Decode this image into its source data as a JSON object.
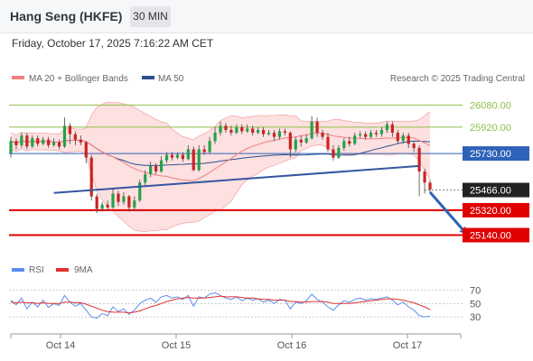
{
  "header": {
    "title": "Hang Seng (HKFE)",
    "timeframe": "30 MIN"
  },
  "datetime": "Friday, October 17, 2025 7:16:22 AM CET",
  "legend": {
    "ma20": "MA 20 + Bollinger Bands",
    "ma50": "MA 50",
    "credit": "Research © 2025 Trading Central",
    "rsi": "RSI",
    "rsi_ma": "9MA"
  },
  "colors": {
    "ma20": "#f08080",
    "ma50": "#2d4f8e",
    "bollinger_fill": "#fde0e0",
    "candle_up": "#22a34a",
    "candle_down": "#cc2222",
    "resistance": "#8fbf4a",
    "support": "#e00000",
    "pivot": "#2e62b8",
    "last_price": "#222222",
    "rsi": "#5b8def",
    "rsi_ma": "#e03030",
    "trendline": "#3557a0",
    "arrow": "#2e62b8"
  },
  "chart_data": {
    "type": "candlestick",
    "price_ylim": [
      25000,
      26200
    ],
    "levels": [
      {
        "value": 26080,
        "label": "26080.00",
        "kind": "resistance"
      },
      {
        "value": 25920,
        "label": "25920.00",
        "kind": "resistance"
      },
      {
        "value": 25730,
        "label": "25730.00",
        "kind": "pivot"
      },
      {
        "value": 25466,
        "label": "25466.00",
        "kind": "last"
      },
      {
        "value": 25320,
        "label": "25320.00",
        "kind": "support"
      },
      {
        "value": 25140,
        "label": "25140.00",
        "kind": "support"
      }
    ],
    "x_ticks": [
      "Oct 14",
      "Oct 15",
      "Oct 16",
      "Oct 17"
    ],
    "trendline": [
      [
        8,
        25445
      ],
      [
        76,
        25640
      ]
    ],
    "arrow": {
      "from": [
        78,
        25450
      ],
      "to": [
        85,
        25140
      ]
    },
    "candles": [
      [
        25730,
        25820,
        25850,
        25700
      ],
      [
        25820,
        25790,
        25840,
        25760
      ],
      [
        25790,
        25860,
        25880,
        25770
      ],
      [
        25860,
        25780,
        25880,
        25760
      ],
      [
        25780,
        25840,
        25860,
        25770
      ],
      [
        25840,
        25800,
        25860,
        25780
      ],
      [
        25800,
        25830,
        25850,
        25790
      ],
      [
        25830,
        25790,
        25850,
        25770
      ],
      [
        25790,
        25810,
        25840,
        25780
      ],
      [
        25810,
        25780,
        25830,
        25760
      ],
      [
        25780,
        25930,
        25990,
        25770
      ],
      [
        25930,
        25870,
        25950,
        25800
      ],
      [
        25870,
        25830,
        25890,
        25790
      ],
      [
        25830,
        25810,
        25860,
        25790
      ],
      [
        25810,
        25700,
        25820,
        25660
      ],
      [
        25700,
        25420,
        25720,
        25390
      ],
      [
        25420,
        25330,
        25440,
        25300
      ],
      [
        25330,
        25360,
        25380,
        25310
      ],
      [
        25360,
        25340,
        25390,
        25320
      ],
      [
        25340,
        25440,
        25470,
        25330
      ],
      [
        25440,
        25380,
        25460,
        25350
      ],
      [
        25380,
        25420,
        25450,
        25360
      ],
      [
        25420,
        25340,
        25430,
        25310
      ],
      [
        25340,
        25390,
        25420,
        25320
      ],
      [
        25390,
        25520,
        25540,
        25380
      ],
      [
        25520,
        25580,
        25610,
        25500
      ],
      [
        25580,
        25640,
        25670,
        25560
      ],
      [
        25640,
        25600,
        25660,
        25580
      ],
      [
        25600,
        25680,
        25710,
        25590
      ],
      [
        25680,
        25720,
        25740,
        25660
      ],
      [
        25720,
        25700,
        25740,
        25680
      ],
      [
        25700,
        25720,
        25740,
        25690
      ],
      [
        25720,
        25690,
        25740,
        25670
      ],
      [
        25690,
        25760,
        25790,
        25680
      ],
      [
        25760,
        25610,
        25780,
        25600
      ],
      [
        25610,
        25760,
        25790,
        25600
      ],
      [
        25760,
        25740,
        25790,
        25720
      ],
      [
        25740,
        25820,
        25850,
        25730
      ],
      [
        25820,
        25880,
        25920,
        25800
      ],
      [
        25880,
        25930,
        25960,
        25860
      ],
      [
        25930,
        25900,
        25950,
        25880
      ],
      [
        25900,
        25880,
        25930,
        25860
      ],
      [
        25880,
        25920,
        25940,
        25870
      ],
      [
        25920,
        25890,
        25940,
        25870
      ],
      [
        25890,
        25910,
        25940,
        25880
      ],
      [
        25910,
        25880,
        25930,
        25860
      ],
      [
        25880,
        25900,
        25920,
        25870
      ],
      [
        25900,
        25870,
        25920,
        25850
      ],
      [
        25870,
        25880,
        25900,
        25860
      ],
      [
        25880,
        25850,
        25900,
        25820
      ],
      [
        25850,
        25890,
        25910,
        25830
      ],
      [
        25890,
        25880,
        25910,
        25860
      ],
      [
        25880,
        25760,
        25890,
        25700
      ],
      [
        25760,
        25830,
        25850,
        25740
      ],
      [
        25830,
        25810,
        25860,
        25780
      ],
      [
        25810,
        25840,
        25870,
        25800
      ],
      [
        25840,
        25960,
        26000,
        25830
      ],
      [
        25960,
        25880,
        25990,
        25850
      ],
      [
        25880,
        25850,
        25900,
        25830
      ],
      [
        25850,
        25760,
        25880,
        25740
      ],
      [
        25760,
        25700,
        25790,
        25680
      ],
      [
        25700,
        25770,
        25790,
        25690
      ],
      [
        25770,
        25820,
        25840,
        25750
      ],
      [
        25820,
        25800,
        25850,
        25780
      ],
      [
        25800,
        25860,
        25880,
        25790
      ],
      [
        25860,
        25870,
        25890,
        25840
      ],
      [
        25870,
        25850,
        25890,
        25830
      ],
      [
        25850,
        25880,
        25900,
        25840
      ],
      [
        25880,
        25870,
        25900,
        25850
      ],
      [
        25870,
        25900,
        25920,
        25850
      ],
      [
        25900,
        25940,
        25960,
        25880
      ],
      [
        25940,
        25880,
        25960,
        25850
      ],
      [
        25880,
        25820,
        25900,
        25800
      ],
      [
        25820,
        25860,
        25880,
        25800
      ],
      [
        25860,
        25800,
        25880,
        25770
      ],
      [
        25800,
        25770,
        25820,
        25740
      ],
      [
        25770,
        25600,
        25790,
        25420
      ],
      [
        25600,
        25520,
        25620,
        25440
      ],
      [
        25520,
        25470,
        25540,
        25440
      ]
    ],
    "rsi": {
      "ylim": [
        10,
        80
      ],
      "ticks": [
        70,
        50,
        30
      ],
      "rsi_values": [
        55,
        48,
        58,
        42,
        52,
        45,
        55,
        44,
        50,
        47,
        62,
        52,
        46,
        50,
        40,
        30,
        28,
        35,
        32,
        45,
        38,
        42,
        34,
        40,
        50,
        55,
        58,
        52,
        60,
        62,
        58,
        60,
        56,
        62,
        46,
        60,
        58,
        64,
        66,
        62,
        58,
        56,
        60,
        54,
        58,
        55,
        57,
        52,
        55,
        50,
        56,
        55,
        42,
        52,
        50,
        54,
        64,
        56,
        52,
        45,
        40,
        48,
        54,
        52,
        56,
        58,
        55,
        57,
        56,
        58,
        60,
        55,
        48,
        52,
        45,
        40,
        32,
        30,
        31
      ],
      "ma_values": [
        52,
        51,
        52,
        51,
        51,
        50,
        51,
        50,
        50,
        50,
        52,
        52,
        51,
        51,
        49,
        46,
        43,
        40,
        38,
        37,
        37,
        37,
        36,
        37,
        39,
        42,
        45,
        47,
        50,
        53,
        55,
        57,
        58,
        59,
        58,
        58,
        58,
        59,
        60,
        61,
        60,
        60,
        60,
        59,
        58,
        58,
        57,
        56,
        56,
        55,
        55,
        55,
        53,
        53,
        52,
        52,
        53,
        53,
        53,
        52,
        50,
        50,
        50,
        50,
        51,
        52,
        53,
        54,
        55,
        56,
        57,
        57,
        56,
        55,
        53,
        51,
        48,
        45,
        41
      ]
    }
  }
}
